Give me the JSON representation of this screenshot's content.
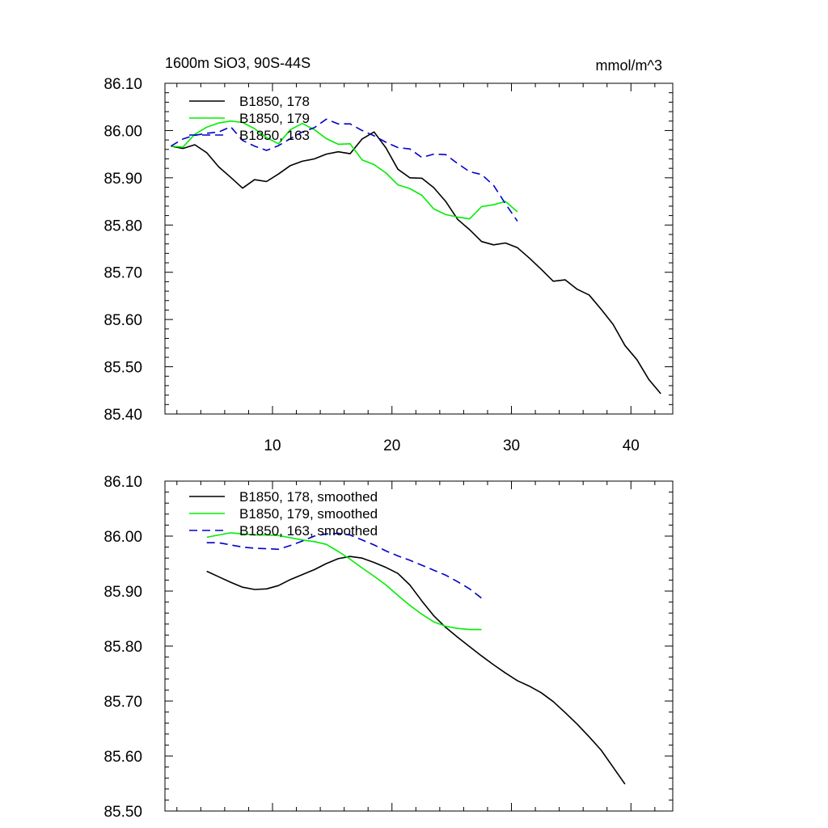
{
  "chart_data": [
    {
      "type": "line",
      "title": "1600m SiO3, 90S-44S",
      "units": "mmol/m^3",
      "xlim": [
        1,
        43.5
      ],
      "ylim": [
        85.4,
        86.1
      ],
      "xticks": [
        10,
        20,
        30,
        40
      ],
      "xtick_labels": [
        "10",
        "20",
        "30",
        "40"
      ],
      "yticks": [
        85.4,
        85.5,
        85.6,
        85.7,
        85.8,
        85.9,
        86.0,
        86.1
      ],
      "ytick_labels": [
        "85.40",
        "85.50",
        "85.60",
        "85.70",
        "85.80",
        "85.90",
        "86.00",
        "86.10"
      ],
      "legend_placement": "top-left",
      "grid": false,
      "series": [
        {
          "name": "B1850, 178",
          "color": "#000000",
          "dash": "solid",
          "x": [
            1.5,
            2.5,
            3.5,
            4.5,
            5.5,
            6.5,
            7.5,
            8.5,
            9.5,
            10.5,
            11.5,
            12.5,
            13.5,
            14.5,
            15.5,
            16.5,
            17.5,
            18.5,
            19.5,
            20.5,
            21.5,
            22.5,
            23.5,
            24.5,
            25.5,
            26.5,
            27.5,
            28.5,
            29.5,
            30.5,
            31.5,
            32.5,
            33.5,
            34.5,
            35.5,
            36.5,
            37.5,
            38.5,
            39.5,
            40.5,
            41.5,
            42.5
          ],
          "y": [
            85.967,
            85.962,
            85.97,
            85.953,
            85.923,
            85.901,
            85.878,
            85.896,
            85.892,
            85.908,
            85.926,
            85.935,
            85.94,
            85.95,
            85.955,
            85.951,
            85.982,
            85.997,
            85.963,
            85.918,
            85.9,
            85.899,
            85.879,
            85.85,
            85.812,
            85.79,
            85.765,
            85.758,
            85.762,
            85.752,
            85.73,
            85.706,
            85.681,
            85.684,
            85.664,
            85.652,
            85.622,
            85.59,
            85.545,
            85.515,
            85.473,
            85.443
          ]
        },
        {
          "name": "B1850, 179",
          "color": "#00ee00",
          "dash": "solid",
          "x": [
            1.5,
            2.5,
            3.5,
            4.5,
            5.5,
            6.5,
            7.5,
            8.5,
            9.5,
            10.5,
            11.5,
            12.5,
            13.5,
            14.5,
            15.5,
            16.5,
            17.5,
            18.5,
            19.5,
            20.5,
            21.5,
            22.5,
            23.5,
            24.5,
            25.5,
            26.5,
            27.5,
            28.5,
            29.5,
            30.5
          ],
          "y": [
            85.967,
            85.965,
            85.992,
            86.007,
            86.016,
            86.02,
            86.017,
            86.004,
            85.985,
            85.972,
            86.002,
            86.015,
            86.002,
            85.983,
            85.971,
            85.972,
            85.938,
            85.928,
            85.91,
            85.885,
            85.877,
            85.863,
            85.834,
            85.822,
            85.817,
            85.813,
            85.839,
            85.843,
            85.85,
            85.828
          ]
        },
        {
          "name": "B1850, 163",
          "color": "#0000cc",
          "dash": "dashed",
          "x": [
            1.5,
            2.5,
            3.5,
            4.5,
            5.5,
            6.5,
            7.5,
            8.5,
            9.5,
            10.5,
            11.5,
            12.5,
            13.5,
            14.5,
            15.5,
            16.5,
            17.5,
            18.5,
            19.5,
            20.5,
            21.5,
            22.5,
            23.5,
            24.5,
            25.5,
            26.5,
            27.5,
            28.5,
            29.5,
            30.5
          ],
          "y": [
            85.967,
            85.982,
            85.99,
            85.994,
            85.997,
            86.008,
            85.979,
            85.967,
            85.958,
            85.968,
            85.983,
            85.997,
            86.006,
            86.024,
            86.014,
            86.014,
            86.0,
            85.989,
            85.975,
            85.964,
            85.961,
            85.943,
            85.95,
            85.949,
            85.93,
            85.913,
            85.907,
            85.884,
            85.845,
            85.808
          ]
        }
      ]
    },
    {
      "type": "line",
      "xlim": [
        1,
        43.5
      ],
      "ylim": [
        85.5,
        86.1
      ],
      "xticks": [
        10,
        20,
        30,
        40
      ],
      "yticks": [
        85.5,
        85.6,
        85.7,
        85.8,
        85.9,
        86.0,
        86.1
      ],
      "ytick_labels": [
        "85.50",
        "85.60",
        "85.70",
        "85.80",
        "85.90",
        "86.00",
        "86.10"
      ],
      "legend_placement": "top-left",
      "grid": false,
      "series": [
        {
          "name": "B1850, 178, smoothed",
          "color": "#000000",
          "dash": "solid",
          "x": [
            4.5,
            5.5,
            6.5,
            7.5,
            8.5,
            9.5,
            10.5,
            11.5,
            12.5,
            13.5,
            14.5,
            15.5,
            16.5,
            17.5,
            18.5,
            19.5,
            20.5,
            21.5,
            22.5,
            23.5,
            24.5,
            25.5,
            26.5,
            27.5,
            28.5,
            29.5,
            30.5,
            31.5,
            32.5,
            33.5,
            34.5,
            35.5,
            36.5,
            37.5,
            38.5,
            39.5
          ],
          "y": [
            85.936,
            85.926,
            85.916,
            85.907,
            85.903,
            85.904,
            85.91,
            85.921,
            85.93,
            85.939,
            85.95,
            85.959,
            85.963,
            85.96,
            85.952,
            85.943,
            85.932,
            85.911,
            85.882,
            85.855,
            85.834,
            85.816,
            85.799,
            85.782,
            85.766,
            85.751,
            85.737,
            85.727,
            85.715,
            85.699,
            85.679,
            85.658,
            85.635,
            85.611,
            85.58,
            85.549
          ]
        },
        {
          "name": "B1850, 179, smoothed",
          "color": "#00ee00",
          "dash": "solid",
          "x": [
            4.5,
            5.5,
            6.5,
            7.5,
            8.5,
            9.5,
            10.5,
            11.5,
            12.5,
            13.5,
            14.5,
            15.5,
            16.5,
            17.5,
            18.5,
            19.5,
            20.5,
            21.5,
            22.5,
            23.5,
            24.5,
            25.5,
            26.5,
            27.5
          ],
          "y": [
            85.998,
            86.002,
            86.006,
            86.004,
            86.002,
            86.002,
            86.001,
            85.997,
            85.993,
            85.99,
            85.985,
            85.972,
            85.958,
            85.942,
            85.927,
            85.911,
            85.892,
            85.874,
            85.858,
            85.844,
            85.836,
            85.832,
            85.83,
            85.83
          ]
        },
        {
          "name": "B1850, 163, smoothed",
          "color": "#0000cc",
          "dash": "dashed",
          "x": [
            4.5,
            5.5,
            6.5,
            7.5,
            8.5,
            9.5,
            10.5,
            11.5,
            12.5,
            13.5,
            14.5,
            15.5,
            16.5,
            17.5,
            18.5,
            19.5,
            20.5,
            21.5,
            22.5,
            23.5,
            24.5,
            25.5,
            26.5,
            27.5
          ],
          "y": [
            85.988,
            85.988,
            85.984,
            85.98,
            85.978,
            85.977,
            85.976,
            85.983,
            85.991,
            86.0,
            86.004,
            86.005,
            86.002,
            85.993,
            85.984,
            85.973,
            85.964,
            85.956,
            85.947,
            85.938,
            85.929,
            85.917,
            85.904,
            85.887
          ]
        }
      ]
    }
  ]
}
